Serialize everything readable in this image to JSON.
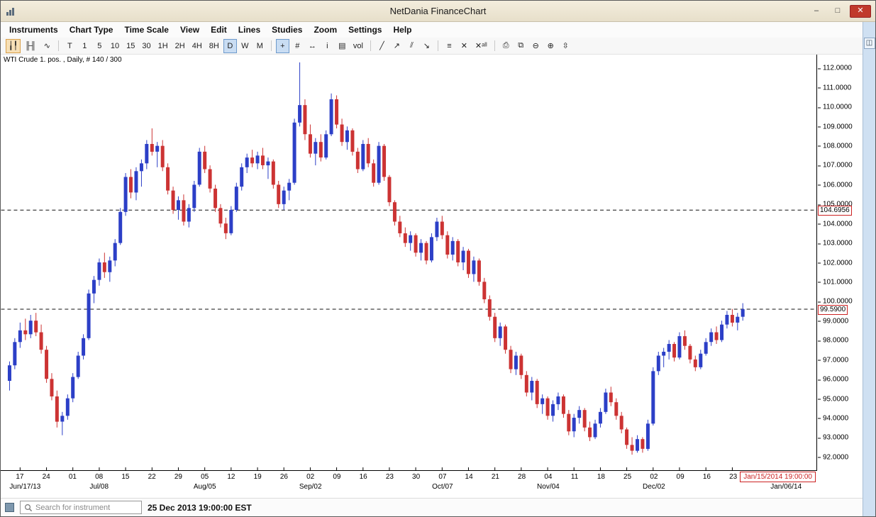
{
  "window": {
    "title": "NetDania FinanceChart",
    "controls": {
      "minimize": "–",
      "maximize": "□",
      "close": "✕"
    }
  },
  "menu": {
    "items": [
      "Instruments",
      "Chart Type",
      "Time Scale",
      "View",
      "Edit",
      "Lines",
      "Studies",
      "Zoom",
      "Settings",
      "Help"
    ]
  },
  "toolbar": {
    "groups": [
      {
        "buttons": [
          {
            "name": "candlestick-chart-button",
            "glyph": "╽╿",
            "selected": true,
            "warm": true
          },
          {
            "name": "ohlc-bars-button",
            "glyph": "╟╢"
          },
          {
            "name": "line-chart-button",
            "glyph": "∿"
          }
        ]
      },
      {
        "buttons": [
          {
            "name": "timeframe-tick",
            "glyph": "T"
          },
          {
            "name": "timeframe-1",
            "glyph": "1"
          },
          {
            "name": "timeframe-5",
            "glyph": "5"
          },
          {
            "name": "timeframe-10",
            "glyph": "10"
          },
          {
            "name": "timeframe-15",
            "glyph": "15"
          },
          {
            "name": "timeframe-30",
            "glyph": "30"
          },
          {
            "name": "timeframe-1h",
            "glyph": "1H"
          },
          {
            "name": "timeframe-2h",
            "glyph": "2H"
          },
          {
            "name": "timeframe-4h",
            "glyph": "4H"
          },
          {
            "name": "timeframe-8h",
            "glyph": "8H"
          },
          {
            "name": "timeframe-daily",
            "glyph": "D",
            "selected": true
          },
          {
            "name": "timeframe-weekly",
            "glyph": "W"
          },
          {
            "name": "timeframe-monthly",
            "glyph": "M"
          }
        ]
      },
      {
        "buttons": [
          {
            "name": "crosshair-button",
            "glyph": "+",
            "selected": true
          },
          {
            "name": "grid-button",
            "glyph": "#"
          },
          {
            "name": "horizontal-scroll-button",
            "glyph": "↔"
          },
          {
            "name": "info-button",
            "glyph": "i"
          },
          {
            "name": "ohlc-data-button",
            "glyph": "▤"
          },
          {
            "name": "volume-button",
            "glyph": "vol"
          }
        ]
      },
      {
        "buttons": [
          {
            "name": "trend-line-button",
            "glyph": "╱"
          },
          {
            "name": "trend-ray-button",
            "glyph": "↗"
          },
          {
            "name": "parallel-channel-button",
            "glyph": "⫽"
          },
          {
            "name": "arrow-annotation-button",
            "glyph": "↘"
          }
        ]
      },
      {
        "buttons": [
          {
            "name": "lines-list-button",
            "glyph": "≡"
          },
          {
            "name": "delete-line-button",
            "glyph": "✕"
          },
          {
            "name": "delete-all-lines-button",
            "glyph": "✕ᵃˡˡ"
          }
        ]
      },
      {
        "buttons": [
          {
            "name": "print-button",
            "glyph": "⎙"
          },
          {
            "name": "snapshot-button",
            "glyph": "⧉"
          },
          {
            "name": "zoom-out-button",
            "glyph": "⊖"
          },
          {
            "name": "zoom-in-button",
            "glyph": "⊕"
          },
          {
            "name": "fit-scale-button",
            "glyph": "⇳"
          }
        ]
      }
    ]
  },
  "rail": {
    "button_glyph": "◫"
  },
  "chart": {
    "label": "WTI Crude 1. pos. , Daily, # 140 / 300",
    "date_label": "Jan/15/2014 19:00:00",
    "price_labels": [
      "112.0000",
      "111.0000",
      "110.0000",
      "109.0000",
      "108.0000",
      "107.0000",
      "106.0000",
      "105.0000",
      "104.0000",
      "103.0000",
      "102.0000",
      "101.0000",
      "100.0000",
      "99.0000",
      "98.0000",
      "97.0000",
      "96.0000",
      "95.0000",
      "94.0000",
      "93.0000",
      "92.0000"
    ]
  },
  "statusbar": {
    "search_placeholder": "Search for instrument",
    "datetime": "25 Dec 2013 19:00:00 EST"
  },
  "chart_data": {
    "type": "candlestick",
    "instrument": "WTI Crude 1. pos.",
    "timeframe": "Daily",
    "bars_shown": "140 / 300",
    "ylim": [
      91.3,
      112.7
    ],
    "x_offset": 12,
    "bar_spacing": 7.45,
    "up_color": "#2c3fc7",
    "down_color": "#cc3333",
    "hlines": [
      {
        "price": 104.6956,
        "label": "104.6956"
      },
      {
        "price": 99.59,
        "label": "99.5900"
      }
    ],
    "ticks": {
      "start_bar": 2,
      "step": 5,
      "labels": [
        "17",
        "24",
        "01",
        "08",
        "15",
        "22",
        "29",
        "05",
        "12",
        "19",
        "26",
        "02",
        "09",
        "16",
        "23",
        "30",
        "07",
        "14",
        "21",
        "28",
        "04",
        "11",
        "18",
        "25",
        "02",
        "09",
        "16",
        "23"
      ]
    },
    "months": [
      {
        "label": "Jun/17/13",
        "bar": 3
      },
      {
        "label": "Jul/08",
        "bar": 17
      },
      {
        "label": "Aug/05",
        "bar": 37
      },
      {
        "label": "Sep/02",
        "bar": 57
      },
      {
        "label": "Oct/07",
        "bar": 82
      },
      {
        "label": "Nov/04",
        "bar": 102
      },
      {
        "label": "Dec/02",
        "bar": 122
      },
      {
        "label": "Jan/06/14",
        "bar": 147
      }
    ],
    "candles": [
      [
        95.9,
        96.9,
        95.4,
        96.7
      ],
      [
        96.7,
        98.1,
        96.5,
        97.9
      ],
      [
        97.9,
        98.9,
        97.6,
        98.5
      ],
      [
        98.5,
        99.1,
        98.0,
        98.3
      ],
      [
        98.3,
        99.3,
        98.1,
        99.0
      ],
      [
        99.0,
        99.4,
        98.2,
        98.4
      ],
      [
        98.4,
        98.8,
        97.3,
        97.5
      ],
      [
        97.5,
        97.7,
        95.8,
        96.0
      ],
      [
        96.0,
        96.3,
        94.9,
        95.1
      ],
      [
        95.1,
        95.4,
        93.5,
        93.8
      ],
      [
        93.8,
        94.3,
        93.1,
        94.1
      ],
      [
        94.1,
        95.2,
        93.9,
        95.0
      ],
      [
        95.0,
        96.3,
        94.8,
        96.1
      ],
      [
        96.1,
        97.4,
        96.0,
        97.2
      ],
      [
        97.2,
        98.3,
        97.0,
        98.1
      ],
      [
        98.1,
        100.6,
        98.0,
        100.4
      ],
      [
        100.4,
        101.3,
        99.9,
        101.1
      ],
      [
        101.1,
        102.2,
        100.8,
        102.0
      ],
      [
        102.0,
        102.5,
        101.2,
        101.5
      ],
      [
        101.5,
        102.3,
        101.0,
        102.1
      ],
      [
        102.1,
        103.2,
        101.8,
        103.0
      ],
      [
        103.0,
        104.8,
        102.9,
        104.6
      ],
      [
        104.6,
        106.6,
        104.4,
        106.4
      ],
      [
        106.4,
        106.8,
        105.3,
        105.6
      ],
      [
        105.6,
        106.9,
        105.2,
        106.7
      ],
      [
        106.7,
        107.3,
        105.9,
        107.1
      ],
      [
        107.1,
        108.3,
        106.8,
        108.1
      ],
      [
        108.1,
        108.9,
        107.5,
        107.7
      ],
      [
        107.7,
        108.2,
        106.9,
        108.0
      ],
      [
        108.0,
        108.3,
        106.7,
        106.9
      ],
      [
        106.9,
        107.1,
        105.5,
        105.7
      ],
      [
        105.7,
        105.9,
        104.5,
        104.7
      ],
      [
        104.7,
        105.4,
        104.2,
        105.2
      ],
      [
        105.2,
        105.5,
        103.9,
        104.1
      ],
      [
        104.1,
        105.0,
        103.8,
        104.8
      ],
      [
        104.8,
        106.2,
        104.6,
        106.0
      ],
      [
        106.0,
        107.9,
        105.9,
        107.7
      ],
      [
        107.7,
        108.0,
        106.6,
        106.8
      ],
      [
        106.8,
        107.0,
        105.6,
        105.8
      ],
      [
        105.8,
        106.0,
        104.6,
        104.8
      ],
      [
        104.8,
        105.0,
        103.8,
        104.0
      ],
      [
        104.0,
        104.3,
        103.2,
        103.5
      ],
      [
        103.5,
        104.9,
        103.4,
        104.7
      ],
      [
        104.7,
        106.1,
        104.6,
        105.9
      ],
      [
        105.9,
        107.1,
        105.7,
        106.9
      ],
      [
        106.9,
        107.6,
        106.6,
        107.4
      ],
      [
        107.4,
        107.8,
        106.9,
        107.1
      ],
      [
        107.1,
        107.7,
        106.8,
        107.5
      ],
      [
        107.5,
        107.9,
        106.8,
        107.0
      ],
      [
        107.0,
        107.4,
        106.3,
        107.2
      ],
      [
        107.2,
        107.3,
        105.8,
        106.0
      ],
      [
        106.0,
        106.2,
        104.8,
        105.0
      ],
      [
        105.0,
        105.9,
        104.7,
        105.7
      ],
      [
        105.7,
        106.3,
        105.2,
        106.1
      ],
      [
        106.1,
        109.4,
        106.0,
        109.2
      ],
      [
        109.2,
        112.3,
        109.0,
        110.1
      ],
      [
        110.1,
        110.4,
        108.3,
        108.6
      ],
      [
        108.6,
        109.1,
        107.4,
        107.6
      ],
      [
        107.6,
        108.4,
        107.0,
        108.2
      ],
      [
        108.2,
        108.6,
        107.2,
        107.4
      ],
      [
        107.4,
        108.8,
        107.3,
        108.6
      ],
      [
        108.6,
        110.7,
        108.5,
        110.4
      ],
      [
        110.4,
        110.6,
        108.9,
        109.1
      ],
      [
        109.1,
        109.4,
        108.0,
        108.2
      ],
      [
        108.2,
        109.0,
        107.8,
        108.8
      ],
      [
        108.8,
        108.9,
        107.5,
        107.7
      ],
      [
        107.7,
        107.9,
        106.6,
        106.8
      ],
      [
        106.8,
        108.3,
        106.7,
        108.1
      ],
      [
        108.1,
        108.4,
        106.9,
        107.1
      ],
      [
        107.1,
        107.3,
        105.9,
        106.1
      ],
      [
        106.1,
        108.2,
        106.0,
        108.0
      ],
      [
        108.0,
        108.1,
        106.2,
        106.4
      ],
      [
        106.4,
        106.5,
        104.9,
        105.1
      ],
      [
        105.1,
        105.2,
        103.9,
        104.1
      ],
      [
        104.1,
        104.4,
        103.3,
        103.5
      ],
      [
        103.5,
        103.8,
        102.8,
        103.0
      ],
      [
        103.0,
        103.6,
        102.6,
        103.4
      ],
      [
        103.4,
        103.5,
        102.3,
        102.5
      ],
      [
        102.5,
        103.2,
        102.1,
        103.0
      ],
      [
        103.0,
        103.1,
        101.9,
        102.1
      ],
      [
        102.1,
        103.5,
        102.0,
        103.3
      ],
      [
        103.3,
        104.3,
        103.1,
        104.1
      ],
      [
        104.1,
        104.4,
        103.2,
        103.4
      ],
      [
        103.4,
        103.6,
        102.2,
        102.4
      ],
      [
        102.4,
        103.3,
        102.1,
        103.1
      ],
      [
        103.1,
        103.2,
        101.8,
        102.0
      ],
      [
        102.0,
        102.8,
        101.6,
        102.6
      ],
      [
        102.6,
        102.7,
        101.2,
        101.4
      ],
      [
        101.4,
        102.3,
        101.0,
        102.1
      ],
      [
        102.1,
        102.2,
        100.8,
        101.0
      ],
      [
        101.0,
        101.2,
        99.9,
        100.1
      ],
      [
        100.1,
        100.3,
        99.0,
        99.2
      ],
      [
        99.2,
        99.4,
        97.9,
        98.1
      ],
      [
        98.1,
        98.9,
        97.7,
        98.7
      ],
      [
        98.7,
        98.8,
        97.3,
        97.5
      ],
      [
        97.5,
        97.7,
        96.3,
        96.5
      ],
      [
        96.5,
        97.4,
        96.2,
        97.2
      ],
      [
        97.2,
        97.3,
        96.0,
        96.2
      ],
      [
        96.2,
        96.4,
        95.1,
        95.3
      ],
      [
        95.3,
        96.1,
        94.9,
        95.9
      ],
      [
        95.9,
        96.0,
        94.5,
        94.7
      ],
      [
        94.7,
        95.2,
        94.2,
        95.0
      ],
      [
        95.0,
        95.1,
        93.9,
        94.1
      ],
      [
        94.1,
        94.9,
        93.8,
        94.7
      ],
      [
        94.7,
        95.3,
        94.4,
        95.1
      ],
      [
        95.1,
        95.2,
        94.0,
        94.2
      ],
      [
        94.2,
        94.4,
        93.1,
        93.3
      ],
      [
        93.3,
        94.2,
        93.0,
        94.0
      ],
      [
        94.0,
        94.6,
        93.7,
        94.4
      ],
      [
        94.4,
        94.5,
        93.3,
        93.5
      ],
      [
        93.5,
        93.8,
        92.8,
        93.0
      ],
      [
        93.0,
        93.9,
        92.9,
        93.7
      ],
      [
        93.7,
        94.5,
        93.5,
        94.3
      ],
      [
        94.3,
        95.5,
        94.2,
        95.3
      ],
      [
        95.3,
        95.6,
        94.6,
        94.8
      ],
      [
        94.8,
        95.0,
        93.9,
        94.1
      ],
      [
        94.1,
        94.3,
        93.2,
        93.4
      ],
      [
        93.4,
        93.5,
        92.4,
        92.6
      ],
      [
        92.6,
        93.0,
        92.1,
        92.3
      ],
      [
        92.3,
        93.1,
        92.2,
        92.9
      ],
      [
        92.9,
        93.0,
        92.2,
        92.4
      ],
      [
        92.4,
        93.9,
        92.3,
        93.7
      ],
      [
        93.7,
        96.6,
        93.6,
        96.4
      ],
      [
        96.4,
        97.4,
        96.2,
        97.2
      ],
      [
        97.2,
        97.6,
        96.6,
        97.4
      ],
      [
        97.4,
        98.0,
        97.0,
        97.8
      ],
      [
        97.8,
        97.9,
        96.9,
        97.1
      ],
      [
        97.1,
        98.4,
        97.0,
        98.2
      ],
      [
        98.2,
        98.5,
        97.5,
        97.7
      ],
      [
        97.7,
        97.8,
        96.8,
        97.0
      ],
      [
        97.0,
        97.2,
        96.4,
        96.6
      ],
      [
        96.6,
        97.5,
        96.5,
        97.3
      ],
      [
        97.3,
        98.1,
        97.2,
        97.9
      ],
      [
        97.9,
        98.6,
        97.7,
        98.4
      ],
      [
        98.4,
        98.7,
        97.8,
        98.0
      ],
      [
        98.0,
        99.0,
        97.9,
        98.8
      ],
      [
        98.8,
        99.5,
        98.6,
        99.3
      ],
      [
        99.3,
        99.6,
        98.7,
        98.9
      ],
      [
        98.9,
        99.4,
        98.5,
        99.2
      ],
      [
        99.2,
        99.9,
        99.0,
        99.59
      ]
    ]
  }
}
